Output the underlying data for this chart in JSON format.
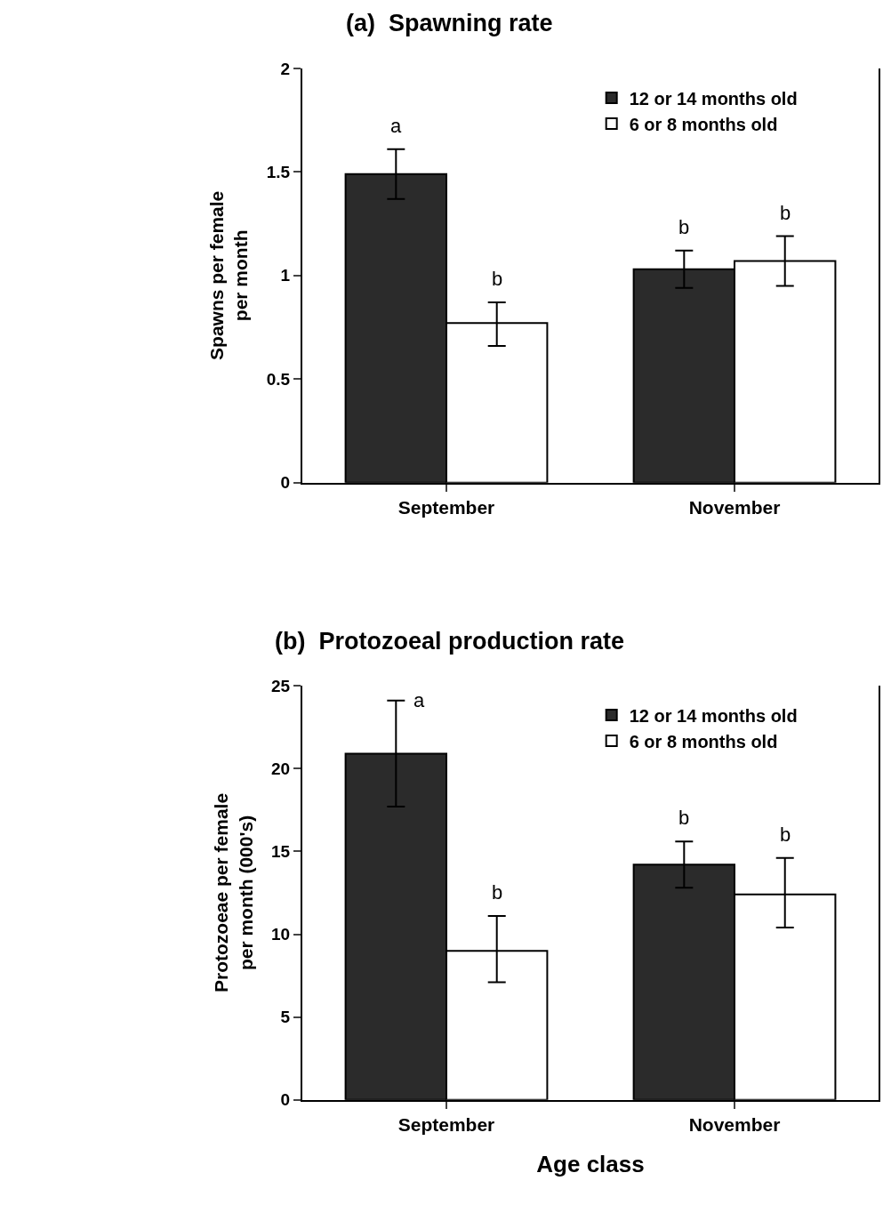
{
  "chart_data": [
    {
      "type": "bar",
      "title": "(a)  Spawning rate",
      "ylabel": "Spawns per female\nper month",
      "categories": [
        "September",
        "November"
      ],
      "series": [
        {
          "name": "12 or 14 months old",
          "color": "#2b2b2b",
          "values": [
            1.49,
            1.03
          ],
          "errors": [
            0.12,
            0.09
          ]
        },
        {
          "name": "6 or 8 months old",
          "color": "#ffffff",
          "values": [
            0.77,
            1.07
          ],
          "errors": [
            [
              0.66,
              0.87
            ],
            [
              0.95,
              1.19
            ]
          ]
        }
      ],
      "ylim": [
        0,
        2
      ],
      "yticks": [
        0,
        0.5,
        1,
        1.5,
        2
      ],
      "legend": "top right",
      "annotations": [
        "a",
        "b",
        "b",
        "b"
      ]
    },
    {
      "type": "bar",
      "title": "(b)  Protozoeal production rate",
      "ylabel": "Protozoeae per female\nper month (000's)",
      "xlabel": "Age class",
      "categories": [
        "September",
        "November"
      ],
      "series": [
        {
          "name": "12 or 14 months old",
          "color": "#2b2b2b",
          "values": [
            20.9,
            14.2
          ],
          "errors": [
            3.2,
            1.4
          ]
        },
        {
          "name": "6 or 8 months old",
          "color": "#ffffff",
          "values": [
            9.0,
            12.4
          ],
          "errors": [
            [
              7.1,
              11.1
            ],
            [
              10.4,
              14.6
            ]
          ]
        }
      ],
      "ylim": [
        0,
        25
      ],
      "yticks": [
        0,
        5,
        10,
        15,
        20,
        25
      ],
      "legend": "top right",
      "annotations": [
        "a",
        "b",
        "b",
        "b"
      ]
    }
  ]
}
